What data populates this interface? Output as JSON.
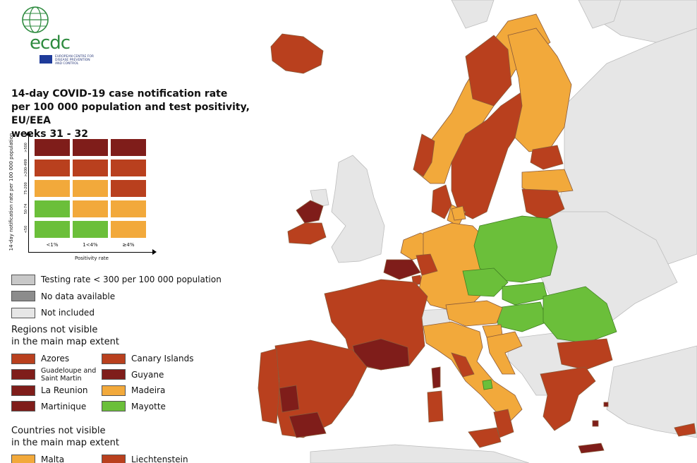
{
  "logo": {
    "word": "ecdc",
    "subtitle": "EUROPEAN CENTRE FOR DISEASE PREVENTION AND CONTROL",
    "icon": "globe-icon"
  },
  "title": {
    "line1": "14-day COVID-19 case notification rate",
    "line2": "per 100 000 population and test positivity, EU/EEA",
    "line3": "weeks 31 - 32"
  },
  "matrix": {
    "y_label": "14-day notification rate per 100 000 population",
    "x_label": "Positivity rate",
    "y_ticks": [
      ">500",
      ">200-499",
      "75-200",
      "50-74",
      "<50"
    ],
    "x_ticks": [
      "<1%",
      "1<4%",
      "≥4%"
    ],
    "rows": [
      [
        "#7f1d1a",
        "#7f1d1a",
        "#7f1d1a"
      ],
      [
        "#b9401e",
        "#b9401e",
        "#b9401e"
      ],
      [
        "#f2a93b",
        "#f2a93b",
        "#b9401e"
      ],
      [
        "#6bbf3a",
        "#f2a93b",
        "#f2a93b"
      ],
      [
        "#6bbf3a",
        "#6bbf3a",
        "#f2a93b"
      ]
    ]
  },
  "legend_status": [
    {
      "label": "Testing rate < 300 per 100 000 population",
      "color": "#c8c8c8"
    },
    {
      "label": "No data available",
      "color": "#8c8c8c"
    },
    {
      "label": "Not included",
      "color": "#e6e6e6"
    }
  ],
  "regions_heading": {
    "line1": "Regions not visible",
    "line2": "in the main map extent"
  },
  "regions": [
    {
      "label": "Azores",
      "color": "#b9401e"
    },
    {
      "label": "Canary Islands",
      "color": "#b9401e"
    },
    {
      "label": "Guadeloupe and Saint Martin",
      "color": "#7f1d1a"
    },
    {
      "label": "Guyane",
      "color": "#7f1d1a"
    },
    {
      "label": "La Reunion",
      "color": "#7f1d1a"
    },
    {
      "label": "Madeira",
      "color": "#f2a93b"
    },
    {
      "label": "Martinique",
      "color": "#7f1d1a"
    },
    {
      "label": "Mayotte",
      "color": "#6bbf3a"
    }
  ],
  "countries_heading": {
    "line1": "Countries not visible",
    "line2": "in the main map extent"
  },
  "countries": [
    {
      "label": "Malta",
      "color": "#f2a93b"
    },
    {
      "label": "Liechtenstein",
      "color": "#b9401e"
    }
  ],
  "colors": {
    "sea": "#ffffff",
    "not_included": "#e6e6e6",
    "dark_red": "#7f1d1a",
    "red": "#b9401e",
    "orange": "#f2a93b",
    "green": "#6bbf3a",
    "border": "#8a5a3a"
  }
}
